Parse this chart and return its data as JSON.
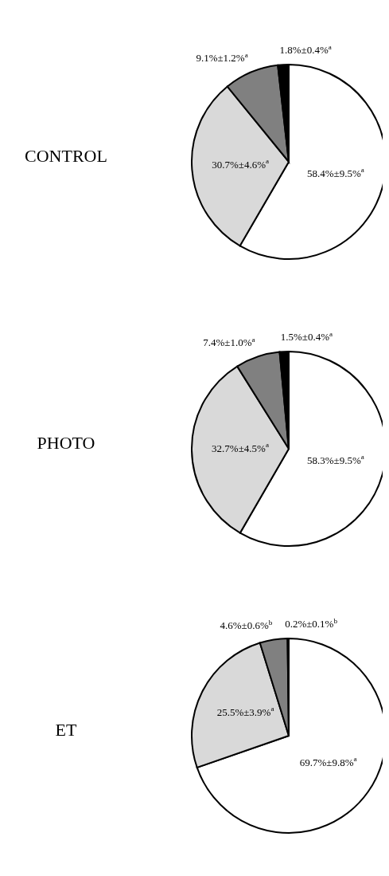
{
  "chart_data": [
    {
      "type": "pie",
      "title": "CONTROL",
      "categories": [
        null,
        null,
        null,
        null
      ],
      "values": [
        58.4,
        30.7,
        9.1,
        1.8
      ],
      "colors": [
        "#ffffff",
        "#d9d9d9",
        "#808080",
        "#000000"
      ],
      "value_labels": [
        "58.4%±9.5%$^{a}$",
        "30.7%±4.6%$^{a}$",
        "9.1%±1.2%$^{a}$",
        "1.8%±0.4%$^{a}$"
      ]
    },
    {
      "type": "pie",
      "title": "PHOTO",
      "categories": [
        null,
        null,
        null,
        null
      ],
      "values": [
        58.3,
        32.7,
        7.4,
        1.5
      ],
      "colors": [
        "#ffffff",
        "#d9d9d9",
        "#808080",
        "#000000"
      ],
      "value_labels": [
        "58.3%±9.5%$^{a}$",
        "32.7%±4.5%$^{a}$",
        "7.4%±1.0%$^{a}$",
        "1.5%±0.4%$^{a}$"
      ]
    },
    {
      "type": "pie",
      "title": "ET",
      "categories": [
        null,
        null,
        null,
        null
      ],
      "values": [
        69.7,
        25.5,
        4.6,
        0.2
      ],
      "colors": [
        "#ffffff",
        "#d9d9d9",
        "#808080",
        "#000000"
      ],
      "value_labels": [
        "69.7%±9.8%$^{a}$",
        "25.5%±3.9%$^{a}$",
        "4.6%±0.6%$^{b}$",
        "0.2%±0.1%$^{b}$"
      ]
    }
  ]
}
